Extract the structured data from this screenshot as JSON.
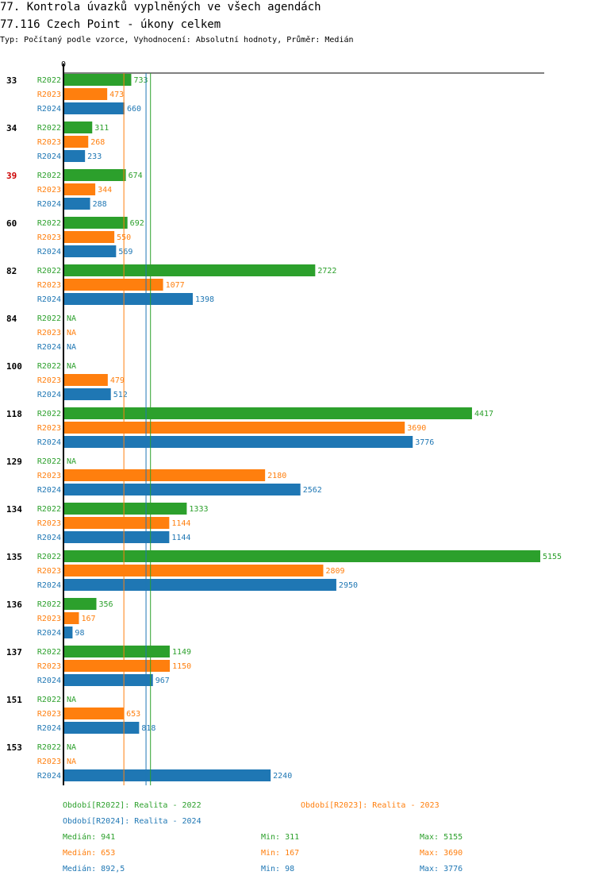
{
  "header": {
    "title_line1": "77. Kontrola úvazků vyplněných ve všech agendách",
    "title_line2": "77.116 Czech Point - úkony celkem",
    "subtitle": "Typ: Počítaný podle vzorce, Vyhodnocení: Absolutní hodnoty, Průměr: Medián"
  },
  "colors": {
    "R2022": "#2ca02c",
    "R2023": "#ff7f0e",
    "R2024": "#1f77b4",
    "highlight": "#cc0000"
  },
  "chart_data": {
    "type": "bar",
    "orientation": "horizontal",
    "title": "77.116 Czech Point - úkony celkem",
    "axis_zero_label": "0",
    "xlim": [
      0,
      5155
    ],
    "grid": false,
    "series_names": [
      "R2022",
      "R2023",
      "R2024"
    ],
    "na_label": "NA",
    "groups": [
      {
        "label": "33",
        "highlight": false,
        "values": [
          733,
          473,
          660
        ]
      },
      {
        "label": "34",
        "highlight": false,
        "values": [
          311,
          268,
          233
        ]
      },
      {
        "label": "39",
        "highlight": true,
        "values": [
          674,
          344,
          288
        ]
      },
      {
        "label": "60",
        "highlight": false,
        "values": [
          692,
          550,
          569
        ]
      },
      {
        "label": "82",
        "highlight": false,
        "values": [
          2722,
          1077,
          1398
        ]
      },
      {
        "label": "84",
        "highlight": false,
        "values": [
          null,
          null,
          null
        ]
      },
      {
        "label": "100",
        "highlight": false,
        "values": [
          null,
          479,
          512
        ]
      },
      {
        "label": "118",
        "highlight": false,
        "values": [
          4417,
          3690,
          3776
        ]
      },
      {
        "label": "129",
        "highlight": false,
        "values": [
          null,
          2180,
          2562
        ]
      },
      {
        "label": "134",
        "highlight": false,
        "values": [
          1333,
          1144,
          1144
        ]
      },
      {
        "label": "135",
        "highlight": false,
        "values": [
          5155,
          2809,
          2950
        ]
      },
      {
        "label": "136",
        "highlight": false,
        "values": [
          356,
          167,
          98
        ]
      },
      {
        "label": "137",
        "highlight": false,
        "values": [
          1149,
          1150,
          967
        ]
      },
      {
        "label": "151",
        "highlight": false,
        "values": [
          null,
          653,
          818
        ]
      },
      {
        "label": "153",
        "highlight": false,
        "values": [
          null,
          null,
          2240
        ]
      }
    ],
    "median_lines": [
      {
        "series": "R2022",
        "value": 941
      },
      {
        "series": "R2023",
        "value": 653
      },
      {
        "series": "R2024",
        "value": 892.5
      }
    ]
  },
  "legend": {
    "r2022": "Období[R2022]: Realita - 2022",
    "r2023": "Období[R2023]: Realita - 2023",
    "r2024": "Období[R2024]: Realita - 2024"
  },
  "stats": [
    {
      "series": "R2022",
      "median": "Medián: 941",
      "min": "Min: 311",
      "max": "Max: 5155"
    },
    {
      "series": "R2023",
      "median": "Medián: 653",
      "min": "Min: 167",
      "max": "Max: 3690"
    },
    {
      "series": "R2024",
      "median": "Medián: 892,5",
      "min": "Min: 98",
      "max": "Max: 3776"
    }
  ]
}
